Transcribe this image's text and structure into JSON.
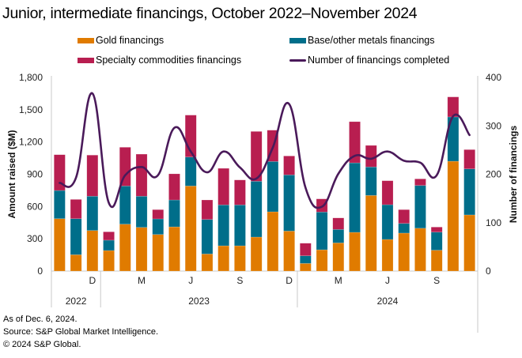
{
  "chart_data": {
    "type": "bar",
    "stacked": true,
    "title": "Junior, intermediate financings, October 2022–November 2024",
    "categories": [
      "Oct 2022",
      "Nov 2022",
      "Dec 2022",
      "Jan 2023",
      "Feb 2023",
      "Mar 2023",
      "Apr 2023",
      "May 2023",
      "Jun 2023",
      "Jul 2023",
      "Aug 2023",
      "Sep 2023",
      "Oct 2023",
      "Nov 2023",
      "Dec 2023",
      "Jan 2024",
      "Feb 2024",
      "Mar 2024",
      "Apr 2024",
      "May 2024",
      "Jun 2024",
      "Jul 2024",
      "Aug 2024",
      "Sep 2024",
      "Oct 2024",
      "Nov 2024"
    ],
    "series": [
      {
        "name": "Gold financings",
        "axis": "left",
        "kind": "bar",
        "color": "#E07B00",
        "values": [
          487,
          152,
          377,
          191,
          436,
          406,
          340,
          411,
          791,
          159,
          235,
          235,
          316,
          551,
          372,
          71,
          198,
          262,
          360,
          703,
          294,
          353,
          398,
          194,
          1021,
          522
        ]
      },
      {
        "name": "Base/other metals financings",
        "axis": "left",
        "kind": "bar",
        "color": "#006E8A",
        "values": [
          262,
          335,
          319,
          96,
          355,
          290,
          145,
          250,
          269,
          321,
          380,
          380,
          519,
          468,
          522,
          71,
          351,
          125,
          646,
          265,
          323,
          90,
          398,
          168,
          412,
          428
        ]
      },
      {
        "name": "Specialty commodities financings",
        "axis": "left",
        "kind": "bar",
        "color": "#B81E50",
        "values": [
          333,
          179,
          382,
          78,
          360,
          391,
          86,
          243,
          390,
          181,
          340,
          232,
          463,
          291,
          176,
          117,
          122,
          107,
          383,
          200,
          223,
          128,
          61,
          47,
          186,
          179
        ]
      },
      {
        "name": "Number of financings completed",
        "axis": "right",
        "kind": "line",
        "color": "#4A1A5A",
        "values": [
          182,
          193,
          367,
          141,
          198,
          215,
          198,
          296,
          247,
          204,
          247,
          214,
          191,
          255,
          345,
          172,
          133,
          201,
          238,
          232,
          247,
          228,
          224,
          198,
          320,
          281
        ]
      }
    ],
    "x_tick_labels": [
      {
        "index": 2,
        "label": "D"
      },
      {
        "index": 5,
        "label": "M"
      },
      {
        "index": 8,
        "label": "J"
      },
      {
        "index": 11,
        "label": "S"
      },
      {
        "index": 14,
        "label": "D"
      },
      {
        "index": 17,
        "label": "M"
      },
      {
        "index": 20,
        "label": "J"
      },
      {
        "index": 23,
        "label": "S"
      }
    ],
    "year_groups": [
      {
        "label": "2022",
        "start": 0,
        "end": 2
      },
      {
        "label": "2023",
        "start": 3,
        "end": 14
      },
      {
        "label": "2024",
        "start": 15,
        "end": 25
      }
    ],
    "ylabel": "Amount raised ($M)",
    "ylim": [
      0,
      1800
    ],
    "yticks": [
      0,
      300,
      600,
      900,
      1200,
      1500,
      1800
    ],
    "ytick_labels": [
      "0",
      "300",
      "600",
      "900",
      "1,200",
      "1,500",
      "1,800"
    ],
    "y2label": "Number of financings",
    "y2lim": [
      0,
      400
    ],
    "y2ticks": [
      0,
      100,
      200,
      300,
      400
    ],
    "y2tick_labels": [
      "0",
      "100",
      "200",
      "300",
      "400"
    ],
    "grid": false,
    "legend_position": "top"
  },
  "legend": [
    {
      "label": "Gold financings",
      "color": "#E07B00",
      "kind": "swatch"
    },
    {
      "label": "Base/other metals financings",
      "color": "#006E8A",
      "kind": "swatch"
    },
    {
      "label": "Specialty commodities financings",
      "color": "#B81E50",
      "kind": "swatch"
    },
    {
      "label": "Number of financings completed",
      "color": "#4A1A5A",
      "kind": "line"
    }
  ],
  "footer": {
    "line1": "As of Dec. 6, 2024.",
    "line2": "Source: S&P Global Market Intelligence.",
    "line3": "© 2024 S&P Global."
  }
}
